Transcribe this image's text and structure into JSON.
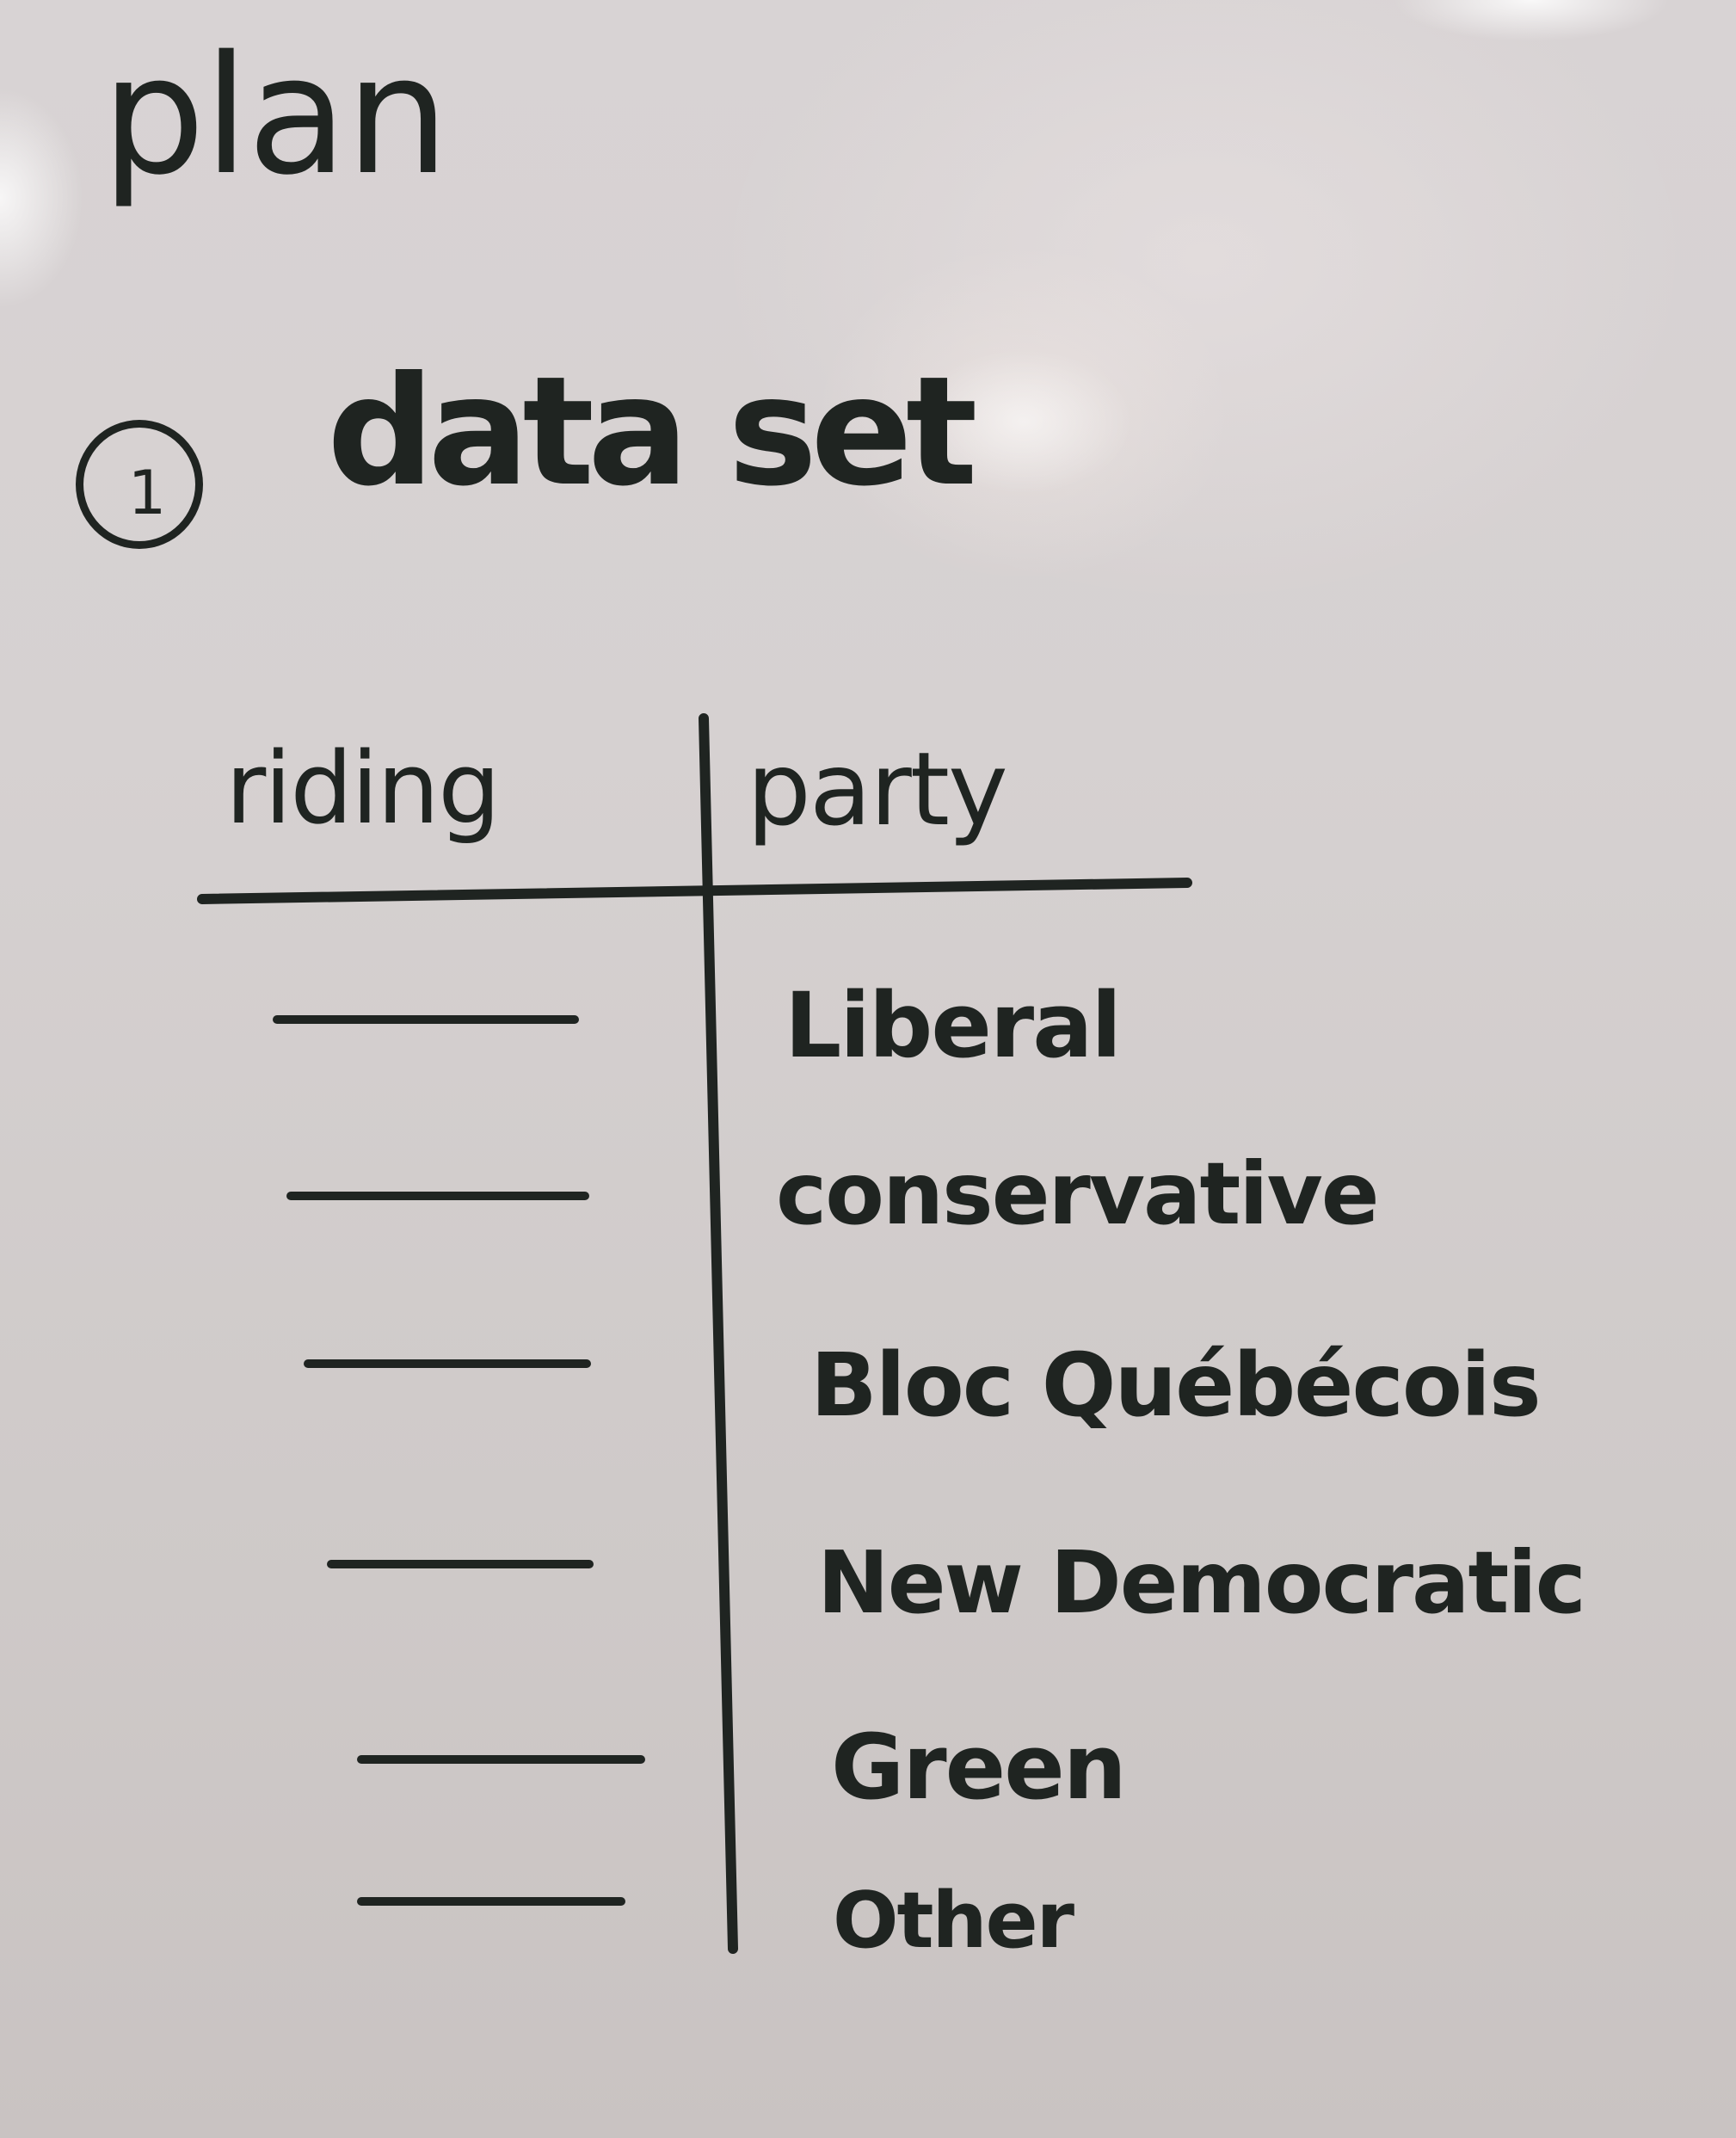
{
  "note": {
    "title": "plan",
    "step": {
      "number": "1",
      "label": "data set"
    },
    "table": {
      "headers": {
        "riding": "riding",
        "party": "party"
      },
      "parties": [
        "Liberal",
        "conservative",
        "Bloc Québécois",
        "New Democratic",
        "Green",
        "Other"
      ]
    }
  },
  "colors": {
    "ink": "#1f2421",
    "board": "#d4cfcf"
  }
}
